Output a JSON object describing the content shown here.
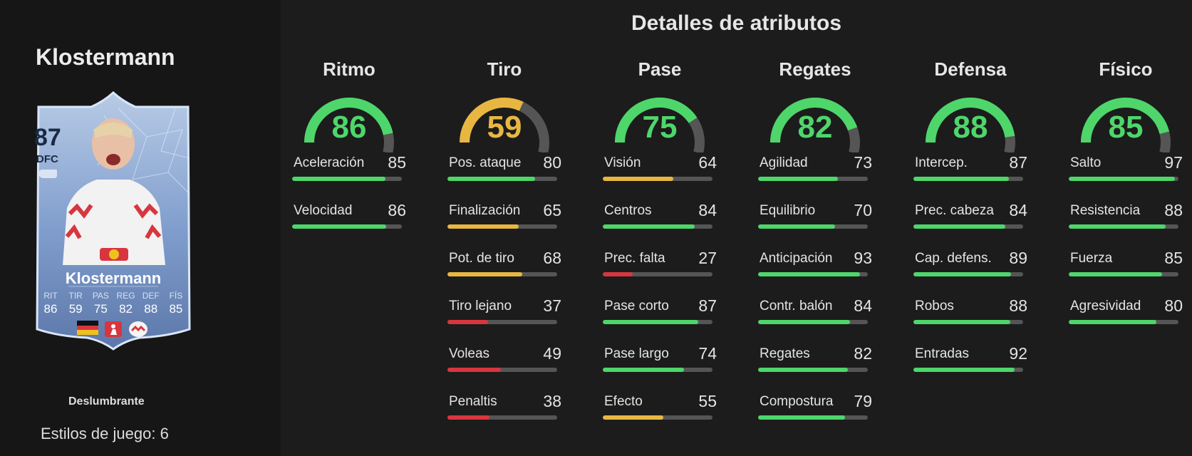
{
  "player": {
    "name": "Klostermann",
    "card": {
      "rating": "87",
      "position": "DFC",
      "name": "Klostermann",
      "stats": [
        {
          "label": "RIT",
          "value": "86"
        },
        {
          "label": "TIR",
          "value": "59"
        },
        {
          "label": "PAS",
          "value": "75"
        },
        {
          "label": "REG",
          "value": "82"
        },
        {
          "label": "DEF",
          "value": "88"
        },
        {
          "label": "FÍS",
          "value": "85"
        }
      ],
      "flags": [
        "germany-flag",
        "bundesliga-logo",
        "rb-leipzig-crest"
      ]
    },
    "rarity": "Deslumbrante",
    "playstyles_label": "Estilos de juego:",
    "playstyles_count": "6"
  },
  "section_title": "Detalles de atributos",
  "colors": {
    "green": "#4ed66b",
    "yellow": "#e8b742",
    "red": "#d8363f",
    "track": "#555555"
  },
  "categories": [
    {
      "name": "Ritmo",
      "value": 86,
      "attributes": [
        {
          "name": "Aceleración",
          "value": 85
        },
        {
          "name": "Velocidad",
          "value": 86
        }
      ]
    },
    {
      "name": "Tiro",
      "value": 59,
      "attributes": [
        {
          "name": "Pos. ataque",
          "value": 80
        },
        {
          "name": "Finalización",
          "value": 65
        },
        {
          "name": "Pot. de tiro",
          "value": 68
        },
        {
          "name": "Tiro lejano",
          "value": 37
        },
        {
          "name": "Voleas",
          "value": 49
        },
        {
          "name": "Penaltis",
          "value": 38
        }
      ]
    },
    {
      "name": "Pase",
      "value": 75,
      "attributes": [
        {
          "name": "Visión",
          "value": 64
        },
        {
          "name": "Centros",
          "value": 84
        },
        {
          "name": "Prec. falta",
          "value": 27
        },
        {
          "name": "Pase corto",
          "value": 87
        },
        {
          "name": "Pase largo",
          "value": 74
        },
        {
          "name": "Efecto",
          "value": 55
        }
      ]
    },
    {
      "name": "Regates",
      "value": 82,
      "attributes": [
        {
          "name": "Agilidad",
          "value": 73
        },
        {
          "name": "Equilibrio",
          "value": 70
        },
        {
          "name": "Anticipación",
          "value": 93
        },
        {
          "name": "Contr. balón",
          "value": 84
        },
        {
          "name": "Regates",
          "value": 82
        },
        {
          "name": "Compostura",
          "value": 79
        }
      ]
    },
    {
      "name": "Defensa",
      "value": 88,
      "attributes": [
        {
          "name": "Intercep.",
          "value": 87
        },
        {
          "name": "Prec. cabeza",
          "value": 84
        },
        {
          "name": "Cap. defens.",
          "value": 89
        },
        {
          "name": "Robos",
          "value": 88
        },
        {
          "name": "Entradas",
          "value": 92
        }
      ]
    },
    {
      "name": "Físico",
      "value": 85,
      "attributes": [
        {
          "name": "Salto",
          "value": 97
        },
        {
          "name": "Resistencia",
          "value": 88
        },
        {
          "name": "Fuerza",
          "value": 85
        },
        {
          "name": "Agresividad",
          "value": 80
        }
      ]
    }
  ]
}
